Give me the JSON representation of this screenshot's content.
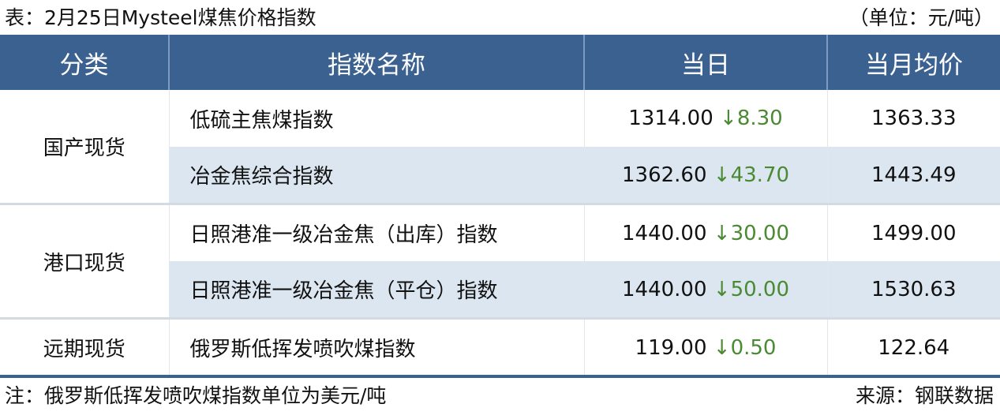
{
  "title": "表：2月25日Mysteel煤焦价格指数",
  "unit": "（单位：元/吨）",
  "headers": [
    "分类",
    "指数名称",
    "当日",
    "当月均价"
  ],
  "groups": [
    {
      "category": "国产现货",
      "rows": [
        {
          "name": "低硫主焦煤指数",
          "value": "1314.00",
          "change": "↓8.30",
          "avg": "1363.33"
        },
        {
          "name": "冶金焦综合指数",
          "value": "1362.60",
          "change": "↓43.70",
          "avg": "1443.49"
        }
      ]
    },
    {
      "category": "港口现货",
      "rows": [
        {
          "name": "日照港准一级冶金焦（出库）指数",
          "value": "1440.00",
          "change": "↓30.00",
          "avg": "1499.00"
        },
        {
          "name": "日照港准一级冶金焦（平仓）指数",
          "value": "1440.00",
          "change": "↓50.00",
          "avg": "1530.63"
        }
      ]
    },
    {
      "category": "远期现货",
      "rows": [
        {
          "name": "俄罗斯低挥发喷吹煤指数",
          "value": "119.00",
          "change": "↓0.50",
          "avg": "122.64"
        }
      ]
    }
  ],
  "note": "注：俄罗斯低挥发喷吹煤指数单位为美元/吨",
  "source": "来源：钢联数据",
  "colors": {
    "header": "#3a6190",
    "alt_row": "#dce6f0",
    "down": "#4a8a32"
  }
}
